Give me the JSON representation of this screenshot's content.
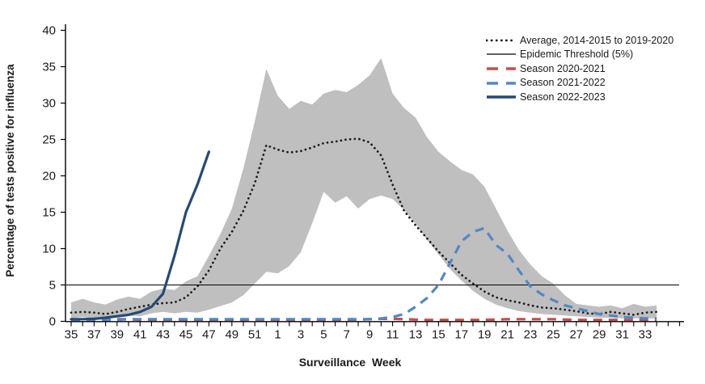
{
  "chart_data": {
    "type": "line",
    "title": "",
    "xlabel": "Surveillance  Week",
    "ylabel": "Percentage of tests positive for influenza",
    "ylim": [
      0,
      40
    ],
    "ytick_step": 5,
    "yticks": [
      0,
      5,
      10,
      15,
      20,
      25,
      30,
      35,
      40
    ],
    "grid": false,
    "legend_position": "top-right",
    "epidemic_threshold": 5,
    "x_weeks": [
      "35",
      "36",
      "37",
      "38",
      "39",
      "40",
      "41",
      "42",
      "43",
      "44",
      "45",
      "46",
      "47",
      "48",
      "49",
      "50",
      "51",
      "52",
      "1",
      "2",
      "3",
      "4",
      "5",
      "6",
      "7",
      "8",
      "9",
      "10",
      "11",
      "12",
      "13",
      "14",
      "15",
      "16",
      "17",
      "18",
      "19",
      "20",
      "21",
      "22",
      "23",
      "24",
      "25",
      "26",
      "27",
      "28",
      "29",
      "30",
      "31",
      "32",
      "33",
      "34"
    ],
    "xtick_labels_shown": [
      "35",
      "37",
      "39",
      "41",
      "43",
      "45",
      "47",
      "49",
      "51",
      "1",
      "3",
      "5",
      "7",
      "9",
      "11",
      "13",
      "15",
      "17",
      "19",
      "21",
      "23",
      "25",
      "27",
      "29",
      "31",
      "33"
    ],
    "band": {
      "color": "#bfbfbf",
      "upper": [
        2.6,
        3.1,
        2.6,
        2.3,
        3.0,
        3.4,
        3.1,
        4.1,
        4.5,
        4.3,
        5.5,
        6.2,
        9.0,
        12.0,
        15.5,
        21.0,
        27.5,
        34.7,
        31.0,
        29.2,
        30.3,
        29.8,
        31.3,
        31.8,
        31.5,
        32.5,
        33.8,
        36.2,
        31.3,
        29.3,
        28.0,
        25.3,
        23.3,
        22.0,
        20.8,
        20.2,
        18.5,
        15.5,
        12.5,
        9.8,
        7.8,
        6.2,
        5.2,
        3.6,
        2.4,
        2.2,
        2.0,
        2.2,
        1.8,
        2.4,
        2.0,
        2.2
      ],
      "lower": [
        0.4,
        0.6,
        0.4,
        0.3,
        0.6,
        0.8,
        0.7,
        1.1,
        1.3,
        1.1,
        1.3,
        1.2,
        1.6,
        2.1,
        2.6,
        3.6,
        5.2,
        6.8,
        6.6,
        7.6,
        9.5,
        13.5,
        17.8,
        16.3,
        17.2,
        15.5,
        16.8,
        17.3,
        16.8,
        15.3,
        13.4,
        11.2,
        9.2,
        7.2,
        5.6,
        4.2,
        3.1,
        2.3,
        1.8,
        1.4,
        1.2,
        1.0,
        0.9,
        0.8,
        0.7,
        0.6,
        0.5,
        0.5,
        0.4,
        0.4,
        0.4,
        0.4
      ]
    },
    "series": [
      {
        "name": "Average, 2014-2015 to 2019-2020",
        "style": "dotted",
        "color": "#1a1a1a",
        "values": [
          1.2,
          1.3,
          1.2,
          1.0,
          1.3,
          1.7,
          2.0,
          2.3,
          2.5,
          2.6,
          3.3,
          4.8,
          7.0,
          10.0,
          12.3,
          15.2,
          19.0,
          24.2,
          23.6,
          23.2,
          23.4,
          23.9,
          24.5,
          24.7,
          25.0,
          25.1,
          24.6,
          22.8,
          18.8,
          15.2,
          13.2,
          11.4,
          9.6,
          8.0,
          6.4,
          5.2,
          4.1,
          3.3,
          2.9,
          2.6,
          2.2,
          1.9,
          1.8,
          1.6,
          1.4,
          1.1,
          1.0,
          1.3,
          1.1,
          0.9,
          1.2,
          1.3
        ]
      },
      {
        "name": "Season 2020-2021",
        "style": "dashed",
        "color": "#c0504d",
        "values": [
          0.1,
          0.1,
          0.1,
          0.15,
          0.3,
          0.3,
          0.2,
          0.2,
          0.2,
          0.2,
          0.2,
          0.2,
          0.2,
          0.2,
          0.2,
          0.2,
          0.2,
          0.2,
          0.2,
          0.2,
          0.2,
          0.2,
          0.2,
          0.2,
          0.2,
          0.25,
          0.3,
          0.35,
          0.35,
          0.3,
          0.25,
          0.2,
          0.2,
          0.2,
          0.2,
          0.2,
          0.2,
          0.25,
          0.3,
          0.3,
          0.3,
          0.3,
          0.3,
          0.25,
          0.2,
          0.2,
          0.2,
          0.2,
          0.2,
          0.2,
          0.2,
          0.2
        ]
      },
      {
        "name": "Season 2021-2022",
        "style": "dashed",
        "color": "#5586c5",
        "values": [
          0.2,
          0.2,
          0.2,
          0.2,
          0.2,
          0.3,
          0.3,
          0.3,
          0.3,
          0.3,
          0.3,
          0.3,
          0.3,
          0.3,
          0.3,
          0.3,
          0.3,
          0.3,
          0.3,
          0.3,
          0.3,
          0.3,
          0.3,
          0.3,
          0.3,
          0.3,
          0.3,
          0.4,
          0.6,
          1.0,
          2.0,
          3.2,
          5.0,
          8.0,
          11.0,
          12.3,
          12.8,
          10.5,
          9.3,
          7.0,
          4.8,
          3.7,
          2.9,
          2.2,
          1.8,
          1.4,
          1.0,
          0.8,
          0.6,
          0.5,
          0.4,
          0.4
        ]
      },
      {
        "name": "Season 2022-2023",
        "style": "solid",
        "color": "#264a73",
        "values": [
          0.3,
          0.3,
          0.35,
          0.5,
          0.7,
          0.9,
          1.3,
          2.0,
          3.8,
          9.0,
          15.0,
          18.8,
          23.3
        ]
      }
    ],
    "legend": [
      {
        "label": "Average, 2014-2015 to 2019-2020",
        "style": "dotted",
        "color": "#1a1a1a"
      },
      {
        "label": "Epidemic Threshold (5%)",
        "style": "thin",
        "color": "#000000"
      },
      {
        "label": "Season 2020-2021",
        "style": "dashed",
        "color": "#c0504d"
      },
      {
        "label": "Season 2021-2022",
        "style": "dashed",
        "color": "#5586c5"
      },
      {
        "label": "Season 2022-2023",
        "style": "solid",
        "color": "#264a73"
      }
    ]
  }
}
